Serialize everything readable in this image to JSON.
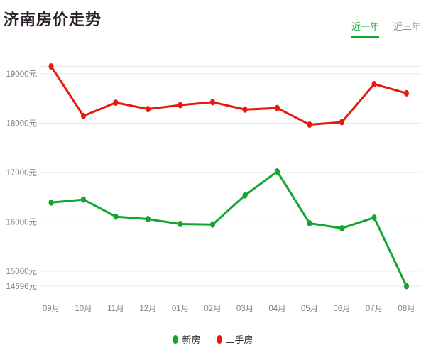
{
  "header": {
    "title": "济南房价走势",
    "tabs": [
      {
        "label": "近一年",
        "active": true
      },
      {
        "label": "近三年",
        "active": false
      }
    ]
  },
  "colors": {
    "new_homes_green": "#12a532",
    "second_hand_red": "#e7180c",
    "grid_line": "#e9e9e9",
    "axis_label": "#8d7c8d",
    "title_text": "#2a1e2a",
    "tab_inactive": "#8a8a8a",
    "legend_text": "#333333",
    "background": "#ffffff"
  },
  "chart_data": {
    "type": "line",
    "title": "济南房价走势",
    "unit": "元",
    "categories": [
      "09月",
      "10月",
      "11月",
      "12月",
      "01月",
      "02月",
      "03月",
      "04月",
      "05月",
      "06月",
      "07月",
      "08月"
    ],
    "series": [
      {
        "name": "新房",
        "key": "new-homes",
        "color_key": "new_homes_green",
        "values": [
          16390,
          16450,
          16105,
          16055,
          15955,
          15945,
          16535,
          17020,
          15970,
          15870,
          16085,
          14696
        ]
      },
      {
        "name": "二手房",
        "key": "second-hand",
        "color_key": "second_hand_red",
        "values": [
          19150,
          18145,
          18415,
          18285,
          18365,
          18425,
          18275,
          18305,
          17970,
          18020,
          18790,
          18605
        ]
      }
    ],
    "y_axis": {
      "tick_values": [
        19000,
        18000,
        17000,
        16000,
        15000,
        14696
      ],
      "tick_labels": [
        "19000元",
        "18000元",
        "17000元",
        "16000元",
        "15000元",
        "14696元"
      ],
      "min": 14696,
      "max": 19150,
      "grid": "horizontal-only",
      "extra_grid_at_max": true
    },
    "legend_position": "bottom-center"
  }
}
